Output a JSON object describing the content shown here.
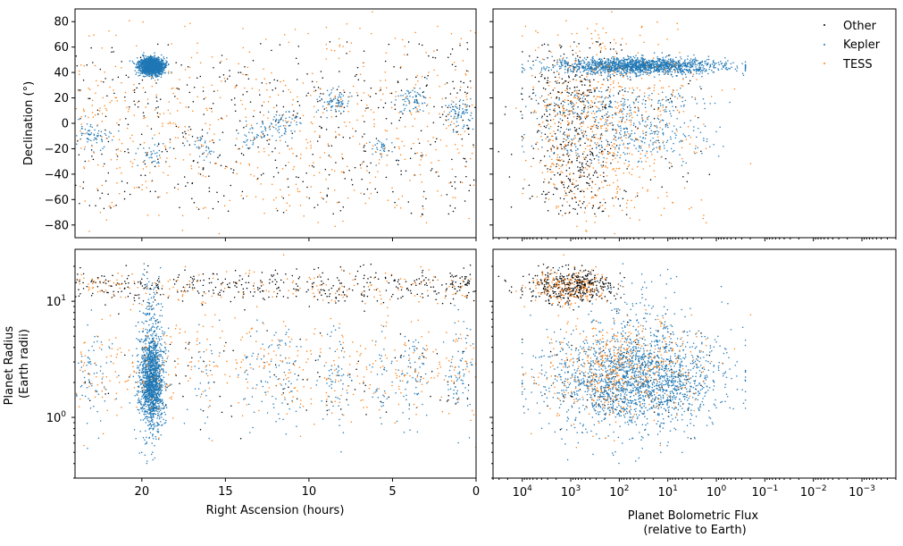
{
  "chart_data": [
    {
      "id": "ra-dec",
      "type": "scatter",
      "xlabel": "",
      "ylabel": "Declination (°)",
      "xlim": [
        24,
        0
      ],
      "ylim": [
        -90,
        90
      ],
      "x_ticks": [],
      "y_ticks": [
        -80,
        -60,
        -40,
        -20,
        0,
        20,
        40,
        60,
        80
      ],
      "y_tick_labels": [
        "−80",
        "−60",
        "−40",
        "−20",
        "0",
        "20",
        "40",
        "60",
        "80"
      ]
    },
    {
      "id": "flux-dec",
      "type": "scatter",
      "x_scale": "log",
      "x_inverted": true,
      "xlabel": "",
      "ylabel": "",
      "xlim": [
        40000,
        0.0002
      ],
      "ylim": [
        -90,
        90
      ],
      "legend": {
        "position": "top-right",
        "entries": [
          {
            "name": "Other",
            "color": "#000000"
          },
          {
            "name": "Kepler",
            "color": "#1f77b4"
          },
          {
            "name": "TESS",
            "color": "#ff7f0e"
          }
        ]
      }
    },
    {
      "id": "ra-radius",
      "type": "scatter",
      "y_scale": "log",
      "xlabel": "Right Ascension (hours)",
      "ylabel": "Planet Radius\n(Earth radii)",
      "xlim": [
        24,
        0
      ],
      "ylim": [
        0.3,
        28
      ],
      "x_ticks": [
        20,
        15,
        10,
        5,
        0
      ],
      "x_tick_labels": [
        "20",
        "15",
        "10",
        "5",
        "0"
      ],
      "y_ticks": [
        1,
        10
      ],
      "y_tick_labels": [
        "10^0",
        "10^1"
      ]
    },
    {
      "id": "flux-radius",
      "type": "scatter",
      "x_scale": "log",
      "x_inverted": true,
      "y_scale": "log",
      "xlabel": "Planet Bolometric Flux\n(relative to Earth)",
      "ylabel": "",
      "xlim": [
        40000,
        0.0002
      ],
      "ylim": [
        0.3,
        28
      ],
      "x_ticks": [
        10000,
        1000,
        100,
        10,
        1,
        0.1,
        0.01,
        0.001
      ],
      "x_tick_exponents": [
        "4",
        "3",
        "2",
        "1",
        "0",
        "−1",
        "−2",
        "−3"
      ]
    }
  ],
  "series": [
    {
      "name": "Other",
      "color": "#000000"
    },
    {
      "name": "Kepler",
      "color": "#1f77b4"
    },
    {
      "name": "TESS",
      "color": "#ff7f0e"
    }
  ]
}
